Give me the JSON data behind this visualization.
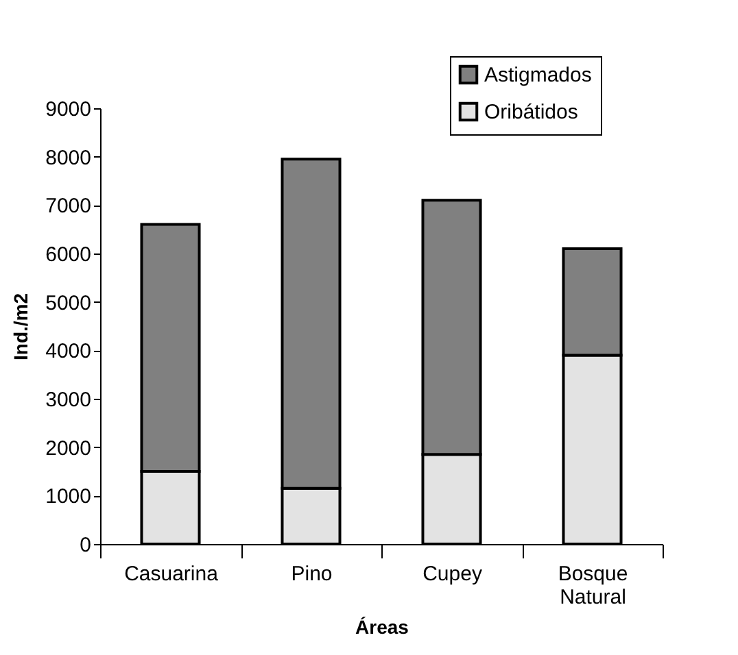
{
  "chart_data": {
    "type": "bar",
    "stacked": true,
    "xlabel": "Áreas",
    "ylabel": "Ind./m2",
    "categories": [
      "Casuarina",
      "Pino",
      "Cupey",
      "Bosque Natural"
    ],
    "series": [
      {
        "name": "Oribátidos",
        "color": "#e3e3e3",
        "values": [
          1500,
          1150,
          1850,
          3900
        ]
      },
      {
        "name": "Astigmados",
        "color": "#808080",
        "values": [
          5100,
          6800,
          5250,
          2200
        ]
      }
    ],
    "ylim": [
      0,
      9000
    ],
    "yticks": [
      0,
      1000,
      2000,
      3000,
      4000,
      5000,
      6000,
      7000,
      8000,
      9000
    ],
    "grid": false,
    "legend": "top right"
  }
}
